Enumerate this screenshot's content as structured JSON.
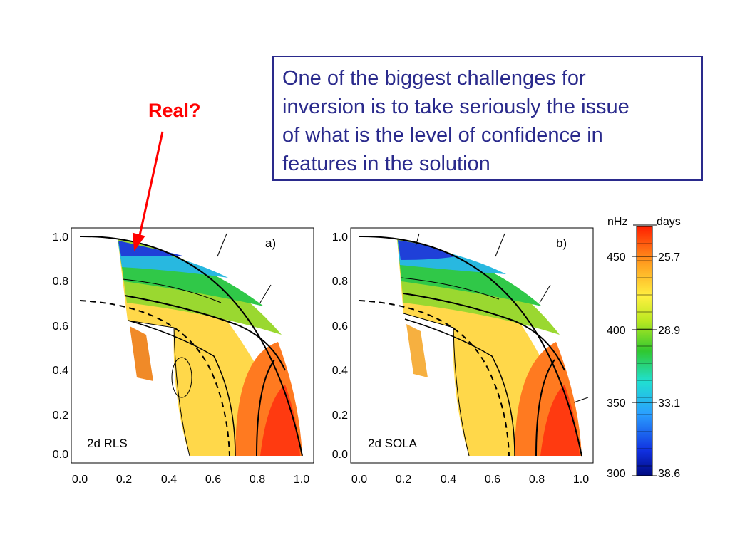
{
  "callout": {
    "lines": [
      "One of the biggest challenges for",
      "inversion is to take seriously the issue",
      "of what is the level of confidence in",
      "features in the solution"
    ]
  },
  "annotation": {
    "label": "Real?",
    "color": "#ff0000"
  },
  "panels": [
    {
      "tag": "a)",
      "method": "2d RLS"
    },
    {
      "tag": "b)",
      "method": "2d SOLA"
    }
  ],
  "axis_ticks": [
    "0.0",
    "0.2",
    "0.4",
    "0.6",
    "0.8",
    "1.0"
  ],
  "colorbar": {
    "left_unit": "nHz",
    "right_unit": "days",
    "left_ticks": [
      "450",
      "400",
      "350",
      "300"
    ],
    "right_ticks": [
      "25.7",
      "28.9",
      "33.1",
      "38.6"
    ]
  }
}
